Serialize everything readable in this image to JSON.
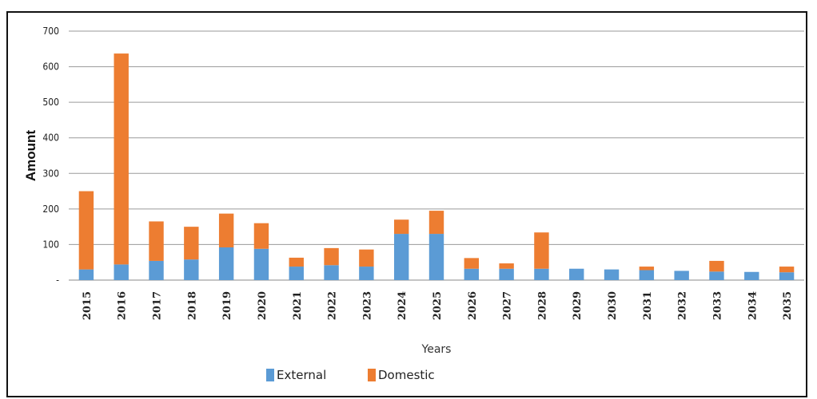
{
  "chart_data": {
    "type": "bar",
    "stacked": true,
    "title": "",
    "xlabel": "Years",
    "ylabel": "Amount",
    "ylim": [
      0,
      700
    ],
    "yticks": [
      "-",
      "100",
      "200",
      "300",
      "400",
      "500",
      "600",
      "700"
    ],
    "grid": true,
    "legend_position": "bottom",
    "categories": [
      "2015",
      "2016",
      "2017",
      "2018",
      "2019",
      "2020",
      "2021",
      "2022",
      "2023",
      "2024",
      "2025",
      "2026",
      "2027",
      "2028",
      "2029",
      "2030",
      "2031",
      "2032",
      "2033",
      "2034",
      "2035"
    ],
    "series": [
      {
        "name": "External",
        "color": "#5b9bd5",
        "values": [
          30,
          44,
          54,
          58,
          92,
          88,
          38,
          42,
          38,
          130,
          130,
          32,
          32,
          32,
          32,
          30,
          28,
          26,
          24,
          23,
          22
        ]
      },
      {
        "name": "Domestic",
        "color": "#ed7d31",
        "values": [
          220,
          593,
          111,
          92,
          95,
          72,
          25,
          48,
          48,
          40,
          65,
          30,
          15,
          102,
          0,
          0,
          10,
          0,
          30,
          0,
          16
        ]
      }
    ]
  }
}
